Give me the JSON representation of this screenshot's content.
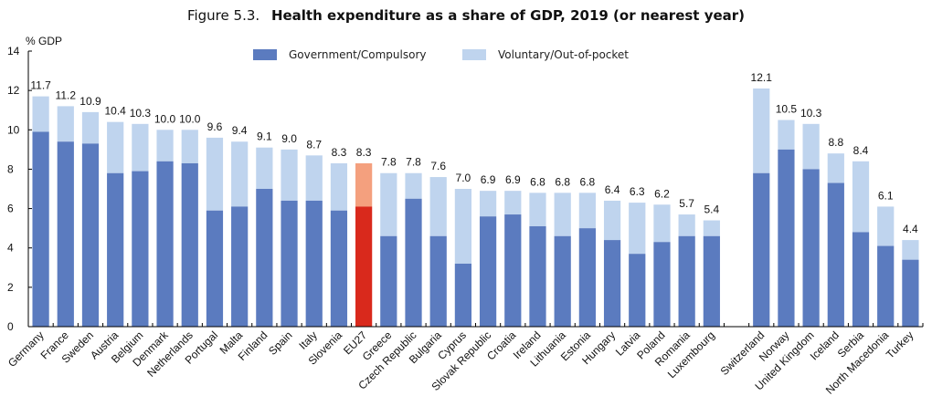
{
  "chart_data": {
    "type": "bar",
    "stacked": true,
    "title_prefix": "Figure 5.3.",
    "title": "Health expenditure as a share of GDP, 2019 (or nearest year)",
    "xlabel": "",
    "ylabel": "% GDP",
    "ylim": [
      0,
      14
    ],
    "yticks": [
      0,
      2,
      4,
      6,
      8,
      10,
      12,
      14
    ],
    "grid": false,
    "legend_position": "top-center",
    "colors": {
      "government": "#5b7bbf",
      "voluntary": "#bfd4ee",
      "eu_government": "#d9291c",
      "eu_voluntary": "#f4a07e"
    },
    "series": [
      {
        "name": "Government/Compulsory",
        "values": [
          9.9,
          9.4,
          9.3,
          7.8,
          7.9,
          8.4,
          8.3,
          5.9,
          6.1,
          7.0,
          6.4,
          6.4,
          5.9,
          6.1,
          4.6,
          6.5,
          4.6,
          3.2,
          5.6,
          5.7,
          5.1,
          4.6,
          5.0,
          4.4,
          3.7,
          4.3,
          4.6,
          4.6,
          7.8,
          9.0,
          8.0,
          7.3,
          4.8,
          4.1,
          3.4
        ]
      },
      {
        "name": "Voluntary/Out-of-pocket",
        "values": [
          1.8,
          1.8,
          1.6,
          2.6,
          2.4,
          1.6,
          1.7,
          3.7,
          3.3,
          2.1,
          2.6,
          2.3,
          2.4,
          2.2,
          3.2,
          1.3,
          3.0,
          3.8,
          1.3,
          1.2,
          1.7,
          2.2,
          1.8,
          2.0,
          2.6,
          1.9,
          1.1,
          0.8,
          4.3,
          1.5,
          2.3,
          1.5,
          3.6,
          2.0,
          1.0
        ]
      }
    ],
    "totals": [
      11.7,
      11.2,
      10.9,
      10.4,
      10.3,
      10.0,
      10.0,
      9.6,
      9.4,
      9.1,
      9.0,
      8.7,
      8.3,
      8.3,
      7.8,
      7.8,
      7.6,
      7.0,
      6.9,
      6.9,
      6.8,
      6.8,
      6.8,
      6.4,
      6.3,
      6.2,
      5.7,
      5.4,
      12.1,
      10.5,
      10.3,
      8.8,
      8.4,
      6.1,
      4.4
    ],
    "total_labels": [
      "11.7",
      "11.2",
      "10.9",
      "10.4",
      "10.3",
      "10.0",
      "10.0",
      "9.6",
      "9.4",
      "9.1",
      "9.0",
      "8.7",
      "8.3",
      "8.3",
      "7.8",
      "7.8",
      "7.6",
      "7.0",
      "6.9",
      "6.9",
      "6.8",
      "6.8",
      "6.8",
      "6.4",
      "6.3",
      "6.2",
      "5.7",
      "5.4",
      "12.1",
      "10.5",
      "10.3",
      "8.8",
      "8.4",
      "6.1",
      "4.4"
    ],
    "categories": [
      "Germany",
      "France",
      "Sweden",
      "Austria",
      "Belgium",
      "Denmark",
      "Netherlands",
      "Portugal",
      "Malta",
      "Finland",
      "Spain",
      "Italy",
      "Slovenia",
      "EU27",
      "Greece",
      "Czech Republic",
      "Bulgaria",
      "Cyprus",
      "Slovak Republic",
      "Croatia",
      "Ireland",
      "Lithuania",
      "Estonia",
      "Hungary",
      "Latvia",
      "Poland",
      "Romania",
      "Luxembourg",
      "Switzerland",
      "Norway",
      "United Kingdom",
      "Iceland",
      "Serbia",
      "North Macedonia",
      "Turkey"
    ],
    "highlight_category": "EU27",
    "group_break_after": "Luxembourg"
  }
}
